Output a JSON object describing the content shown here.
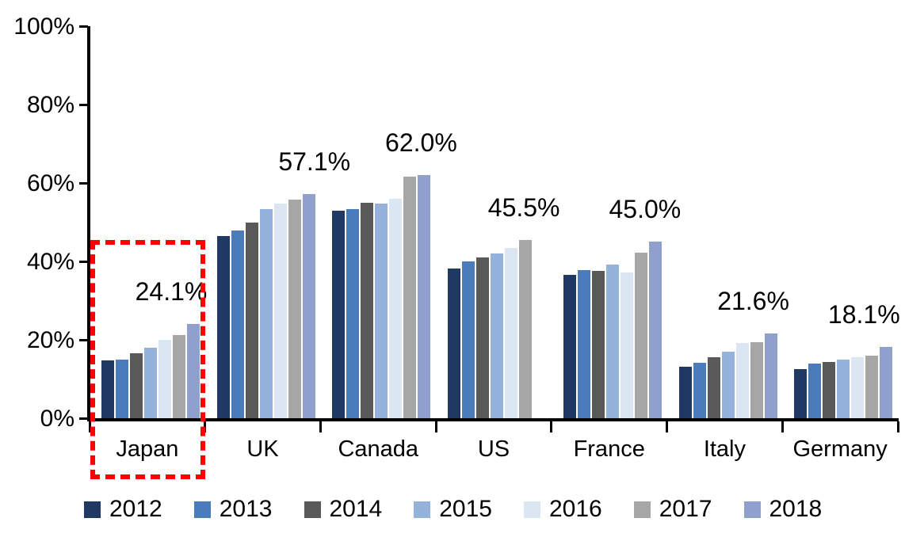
{
  "chart_data": {
    "type": "bar",
    "title": "",
    "xlabel": "",
    "ylabel": "",
    "ylim": [
      0,
      100
    ],
    "yticks": [
      "0%",
      "20%",
      "40%",
      "60%",
      "80%",
      "100%"
    ],
    "ytick_values": [
      0,
      20,
      40,
      60,
      80,
      100
    ],
    "grid": false,
    "legend_position": "bottom",
    "axis_color": "#000000",
    "categories": [
      "Japan",
      "UK",
      "Canada",
      "US",
      "France",
      "Italy",
      "Germany"
    ],
    "series": [
      {
        "name": "2012",
        "color": "#1F3864",
        "values": [
          14.8,
          46.4,
          53.0,
          38.2,
          36.5,
          13.2,
          12.5
        ]
      },
      {
        "name": "2013",
        "color": "#4A7CBB",
        "values": [
          15.0,
          47.9,
          53.4,
          40.0,
          37.7,
          14.1,
          13.9
        ]
      },
      {
        "name": "2014",
        "color": "#595959",
        "values": [
          16.6,
          50.0,
          54.9,
          41.0,
          37.6,
          15.5,
          14.4
        ]
      },
      {
        "name": "2015",
        "color": "#95B3DA",
        "values": [
          18.0,
          53.3,
          54.7,
          42.1,
          39.2,
          17.0,
          14.9
        ]
      },
      {
        "name": "2016",
        "color": "#DCE6F3",
        "values": [
          20.0,
          54.8,
          56.0,
          43.5,
          37.2,
          19.2,
          15.6
        ]
      },
      {
        "name": "2017",
        "color": "#A6A6A6",
        "values": [
          21.2,
          55.8,
          61.7,
          45.5,
          42.3,
          19.4,
          16.0
        ]
      },
      {
        "name": "2018",
        "color": "#8FA0CC",
        "values": [
          24.1,
          57.1,
          62.0,
          null,
          45.0,
          21.6,
          18.1
        ]
      }
    ],
    "annotations": [
      {
        "category": "Japan",
        "text": "24.1%"
      },
      {
        "category": "UK",
        "text": "57.1%"
      },
      {
        "category": "Canada",
        "text": "62.0%"
      },
      {
        "category": "US",
        "text": "45.5%"
      },
      {
        "category": "France",
        "text": "45.0%"
      },
      {
        "category": "Italy",
        "text": "21.6%"
      },
      {
        "category": "Germany",
        "text": "18.1%"
      }
    ],
    "highlight": {
      "category": "Japan",
      "style": "dashed-box",
      "color": "#FF0000"
    }
  },
  "legend": {
    "items": [
      {
        "label": "2012",
        "color": "#1F3864"
      },
      {
        "label": "2013",
        "color": "#4A7CBB"
      },
      {
        "label": "2014",
        "color": "#595959"
      },
      {
        "label": "2015",
        "color": "#95B3DA"
      },
      {
        "label": "2016",
        "color": "#DCE6F3"
      },
      {
        "label": "2017",
        "color": "#A6A6A6"
      },
      {
        "label": "2018",
        "color": "#8FA0CC"
      }
    ]
  }
}
